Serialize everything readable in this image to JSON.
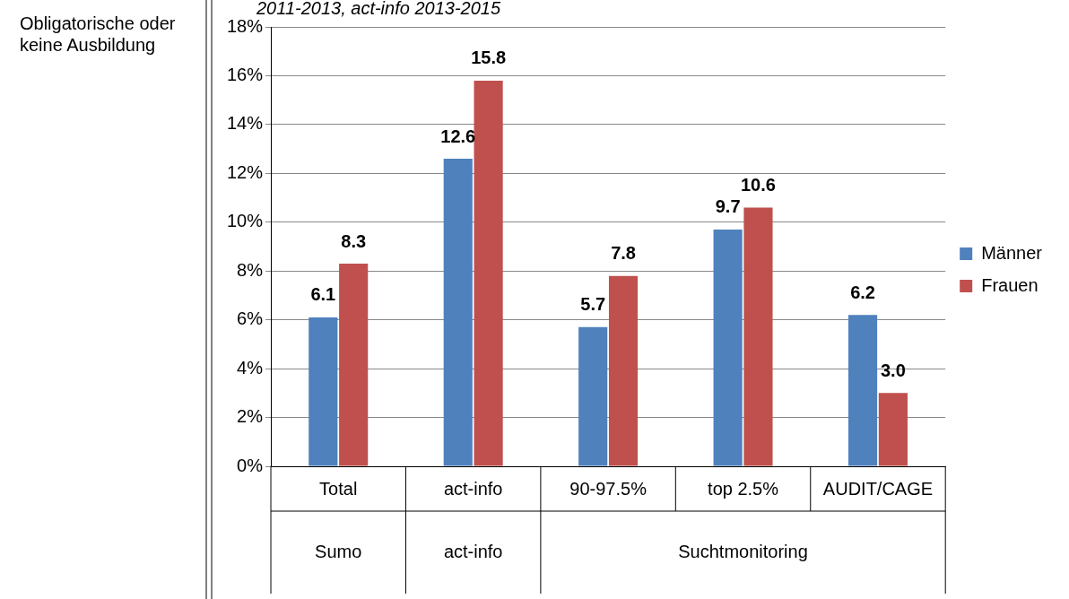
{
  "chart_data": {
    "type": "bar",
    "subtitle": "2011-2013, act-info 2013-2015",
    "categories": [
      "Total",
      "act-info",
      "90-97.5%",
      "top 2.5%",
      "AUDIT/CAGE"
    ],
    "series": [
      {
        "name": "Männer",
        "color": "#4f81bd",
        "values": [
          6.1,
          12.6,
          5.7,
          9.7,
          6.2
        ],
        "value_labels": [
          "6.1",
          "12.6",
          "5.7",
          "9.7",
          "6.2"
        ]
      },
      {
        "name": "Frauen",
        "color": "#c0504d",
        "values": [
          8.3,
          15.8,
          7.8,
          10.6,
          3.0
        ],
        "value_labels": [
          "8.3",
          "15.8",
          "7.8",
          "10.6",
          "3.0"
        ]
      }
    ],
    "ylim": [
      0,
      18
    ],
    "yticks": [
      {
        "value": 0,
        "label": "0%"
      },
      {
        "value": 2,
        "label": "2%"
      },
      {
        "value": 4,
        "label": "4%"
      },
      {
        "value": 6,
        "label": "6%"
      },
      {
        "value": 8,
        "label": "8%"
      },
      {
        "value": 10,
        "label": "10%"
      },
      {
        "value": 12,
        "label": "12%"
      },
      {
        "value": 14,
        "label": "14%"
      },
      {
        "value": 16,
        "label": "16%"
      },
      {
        "value": 18,
        "label": "18%"
      }
    ],
    "grid": "y",
    "legend": "right",
    "annotations": [
      "Obligatorische oder keine Ausbildung",
      "Sumo",
      "act-info",
      "Suchtmonitoring"
    ]
  }
}
